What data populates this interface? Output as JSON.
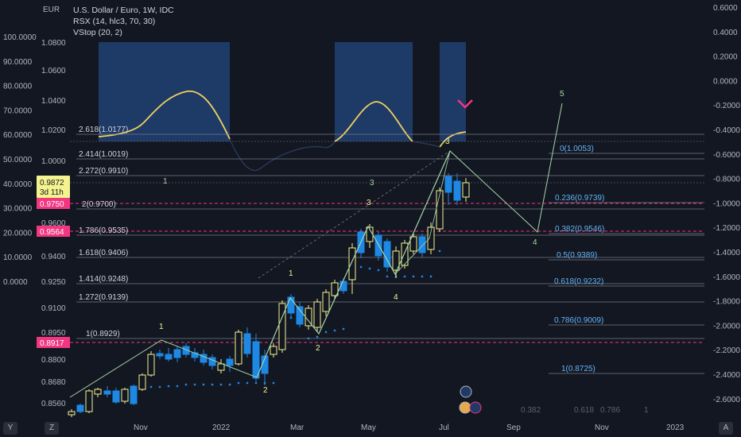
{
  "header": {
    "title": "U.S. Dollar / Euro, 1W, IDC",
    "indicator_rsx": "RSX (14, hlc3, 70, 30)",
    "indicator_vstop": "VStop (20, 2)",
    "currency": "EUR"
  },
  "left_axis": {
    "ticks": [
      "100.0000",
      "90.0000",
      "80.0000",
      "70.0000",
      "60.0000",
      "50.0000",
      "40.0000",
      "30.0000",
      "20.0000",
      "10.0000",
      "0.0000"
    ],
    "badges": [
      {
        "text": "0.9750",
        "color": "#f23680"
      },
      {
        "text": "0.9564",
        "color": "#f23680"
      },
      {
        "text": "0.8917",
        "color": "#f23680"
      }
    ]
  },
  "price_axis": {
    "ticks": [
      "1.0800",
      "1.0600",
      "1.0400",
      "1.0200",
      "1.0000",
      "0.9600",
      "0.9400",
      "0.9250",
      "0.9100",
      "0.8950",
      "0.8800",
      "0.8680",
      "0.8560"
    ],
    "current_price": "0.9872",
    "countdown": "3d 11h"
  },
  "right_axis": {
    "ticks": [
      "0.6000",
      "0.4000",
      "0.2000",
      "0.0000",
      "-0.2000",
      "-0.4000",
      "-0.6000",
      "-0.8000",
      "-1.0000",
      "-1.2000",
      "-1.4000",
      "-1.6000",
      "-1.8000",
      "-2.0000",
      "-2.2000",
      "-2.4000",
      "-2.6000"
    ]
  },
  "time_axis": {
    "ticks": [
      "Nov",
      "2022",
      "Mar",
      "May",
      "Jul",
      "Sep",
      "Nov",
      "2023"
    ]
  },
  "fib_extension": [
    "2.618(1.0177)",
    "2.414(1.0019)",
    "2.272(0.9910)",
    "2(0.9700)",
    "1.786(0.9535)",
    "1.618(0.9406)",
    "1.414(0.9248)",
    "1.272(0.9139)",
    "1(0.8929)"
  ],
  "fib_retracement": [
    "0(1.0053)",
    "0.236(0.9739)",
    "0.382(0.9546)",
    "0.5(0.9389)",
    "0.618(0.9232)",
    "0.786(0.9009)",
    "1(0.8725)"
  ],
  "fib_bottom_markers": [
    "0.382",
    "0.618",
    "0.786",
    "1"
  ],
  "wave_labels": {
    "first": [
      "1",
      "2",
      "3",
      "4",
      "5"
    ],
    "second": [
      "1",
      "2",
      "3",
      "4",
      "5"
    ]
  },
  "toolbar": {
    "left": "Y",
    "mid": "Z",
    "right": "A"
  },
  "colors": {
    "background": "#131722",
    "up": "#f5f38f",
    "down": "#1e88e5",
    "magenta": "#f23680",
    "highlight": "#1e3a66",
    "wave": "#a5d6a7",
    "rsx": "#f0d060"
  }
}
